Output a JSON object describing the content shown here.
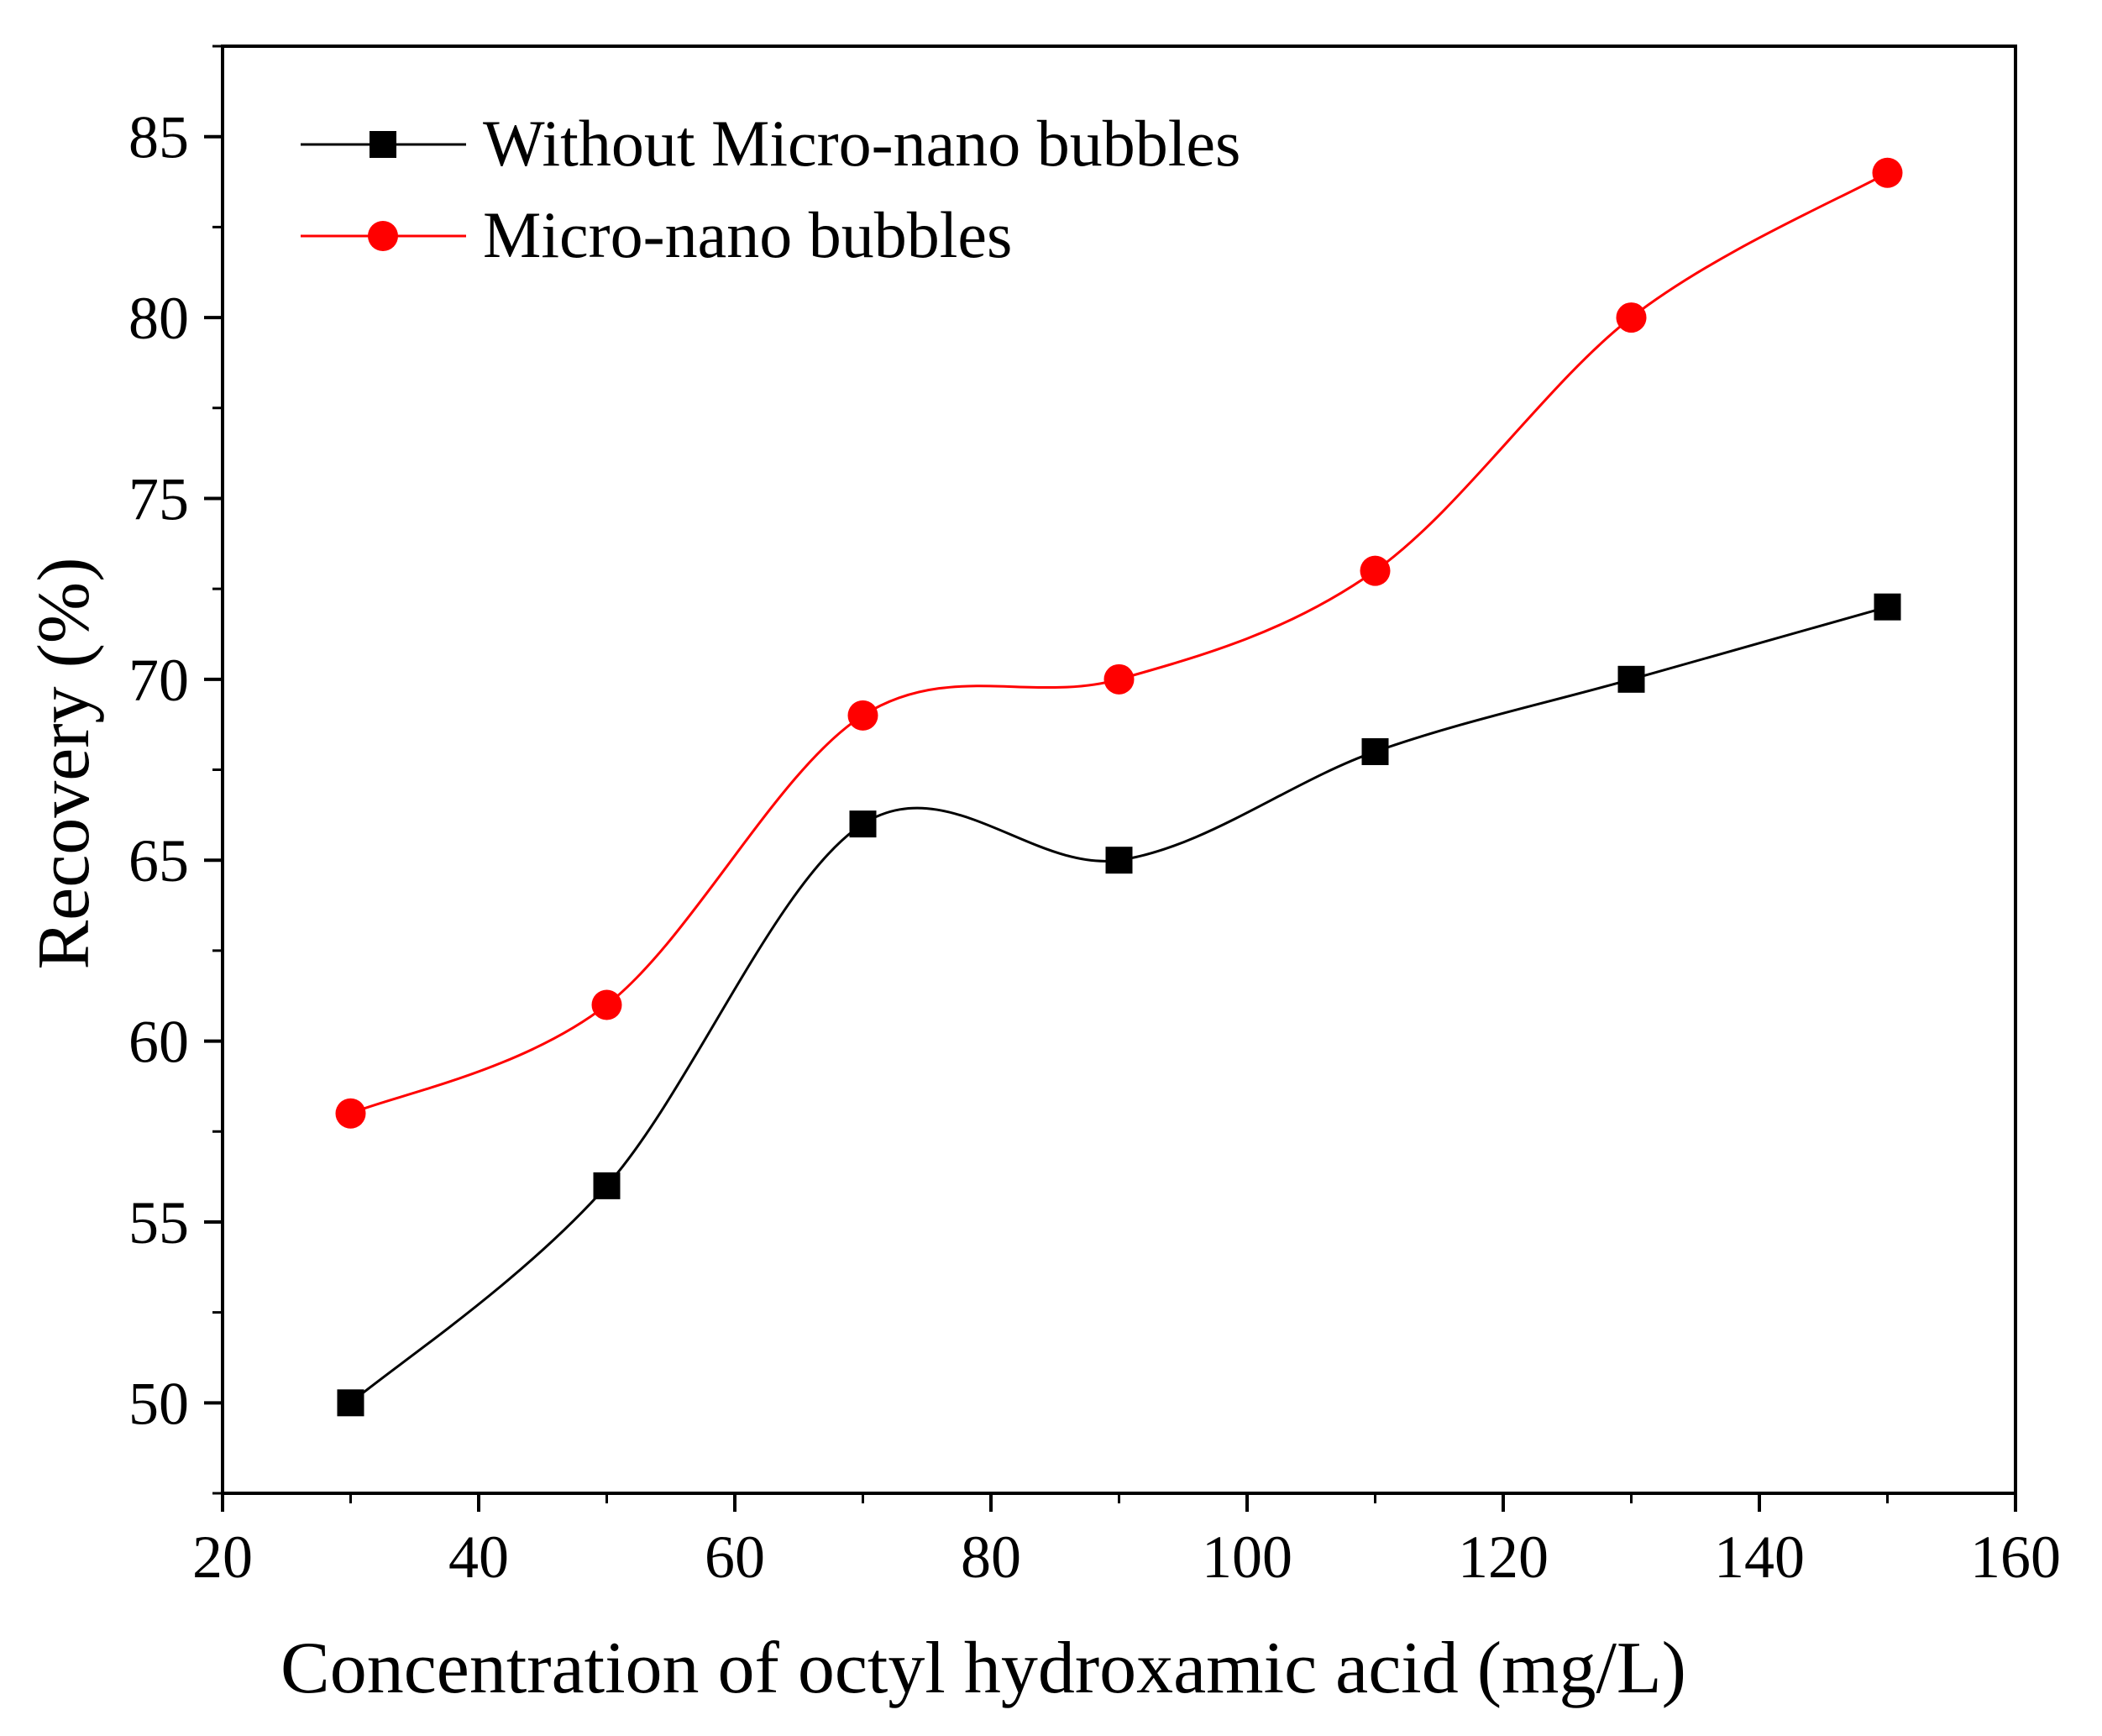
{
  "chart_data": {
    "type": "line",
    "title": "",
    "xlabel": "Concentration of octyl hydroxamic acid (mg/L)",
    "ylabel": "Recovery (%)",
    "xlim": [
      20,
      160
    ],
    "ylim": [
      47.5,
      87.5
    ],
    "x_ticks": [
      20,
      40,
      60,
      80,
      100,
      120,
      140,
      160
    ],
    "y_ticks": [
      50,
      55,
      60,
      65,
      70,
      75,
      80,
      85
    ],
    "x": [
      30,
      50,
      70,
      90,
      110,
      130,
      150
    ],
    "grid": false,
    "legend_position": "top-left",
    "series": [
      {
        "name": "Without Micro-nano bubbles",
        "marker": "square",
        "color": "#000000",
        "values": [
          50,
          56,
          66,
          65,
          68,
          70,
          72
        ]
      },
      {
        "name": "Micro-nano bubbles",
        "marker": "circle",
        "color": "#ff0000",
        "values": [
          58,
          61,
          69,
          70,
          73,
          80,
          84
        ]
      }
    ]
  }
}
